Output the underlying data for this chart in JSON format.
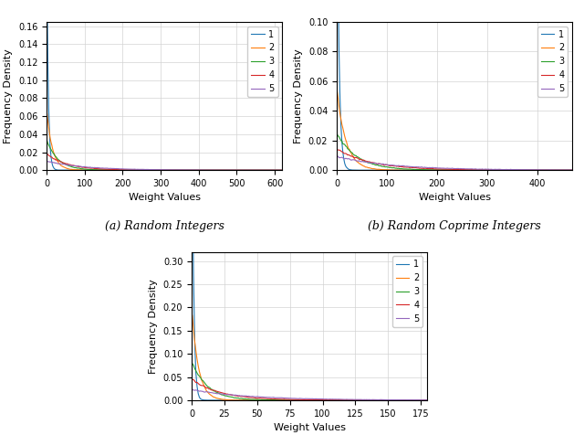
{
  "title_a": "(a) Random Integers",
  "title_b": "(b) Random Coprime Integers",
  "xlabel": "Weight Values",
  "ylabel": "Frequency Density",
  "legend_labels": [
    "1",
    "2",
    "3",
    "4",
    "5"
  ],
  "colors": [
    "#1f77b4",
    "#ff7f0e",
    "#2ca02c",
    "#d62728",
    "#9467bd"
  ],
  "subplot_a": {
    "xlim": [
      0,
      620
    ],
    "ylim": [
      0,
      0.165
    ],
    "yticks": [
      0.0,
      0.02,
      0.04,
      0.06,
      0.08,
      0.1,
      0.12,
      0.14,
      0.16
    ],
    "xticks": [
      0,
      100,
      200,
      300,
      400,
      500,
      600
    ],
    "n_samples": 100000,
    "scales": [
      4,
      15,
      30,
      55,
      100
    ],
    "max_vals": [
      620,
      620,
      620,
      620,
      620
    ],
    "bins": 300
  },
  "subplot_b": {
    "xlim": [
      0,
      470
    ],
    "ylim": [
      0,
      0.1
    ],
    "yticks": [
      0.0,
      0.02,
      0.04,
      0.06,
      0.08,
      0.1
    ],
    "xticks": [
      0,
      100,
      200,
      300,
      400
    ],
    "n_samples": 100000,
    "scales": [
      4,
      18,
      40,
      70,
      110
    ],
    "max_vals": [
      470,
      470,
      470,
      470,
      470
    ],
    "bins": 250
  },
  "subplot_c": {
    "xlim": [
      0,
      180
    ],
    "ylim": [
      0,
      0.32
    ],
    "yticks": [
      0.0,
      0.05,
      0.1,
      0.15,
      0.2,
      0.25,
      0.3
    ],
    "xticks": [
      0,
      25,
      50,
      75,
      100,
      125,
      150,
      175
    ],
    "n_samples": 100000,
    "scales": [
      1.2,
      5,
      12,
      22,
      45
    ],
    "max_vals": [
      180,
      180,
      180,
      180,
      180
    ],
    "bins": 200
  },
  "figsize": [
    6.4,
    4.76
  ],
  "dpi": 100
}
